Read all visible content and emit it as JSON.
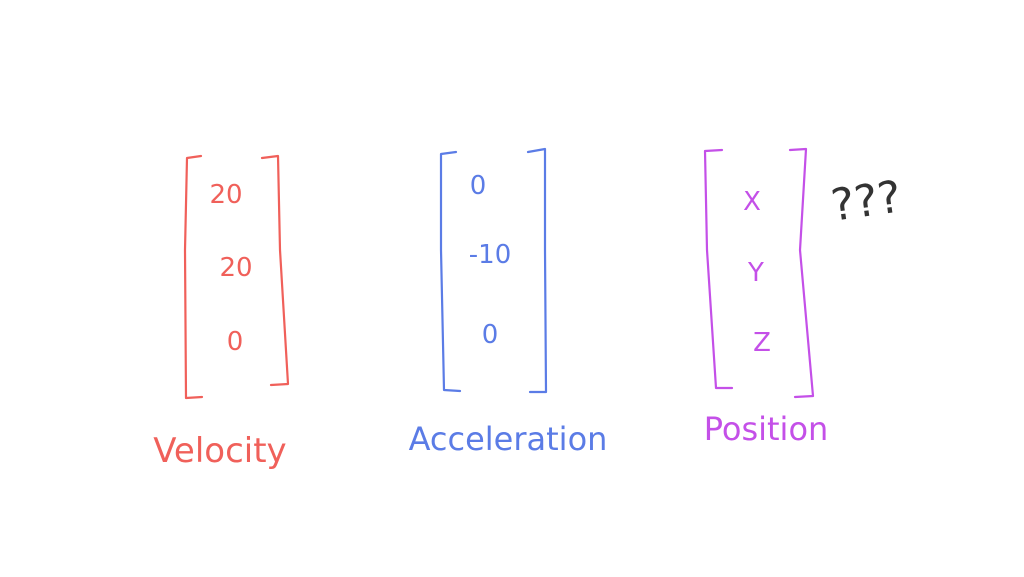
{
  "vectors": [
    {
      "id": "velocity",
      "label": "Velocity",
      "color": "#f0605a",
      "values": [
        "20",
        "20",
        "0"
      ]
    },
    {
      "id": "acceleration",
      "label": "Acceleration",
      "color": "#5b7ce6",
      "values": [
        "0",
        "-10",
        "0"
      ]
    },
    {
      "id": "position",
      "label": "Position",
      "color": "#c450e8",
      "values": [
        "X",
        "Y",
        "Z"
      ]
    }
  ],
  "annotation": {
    "text": "???",
    "color": "#333333"
  }
}
